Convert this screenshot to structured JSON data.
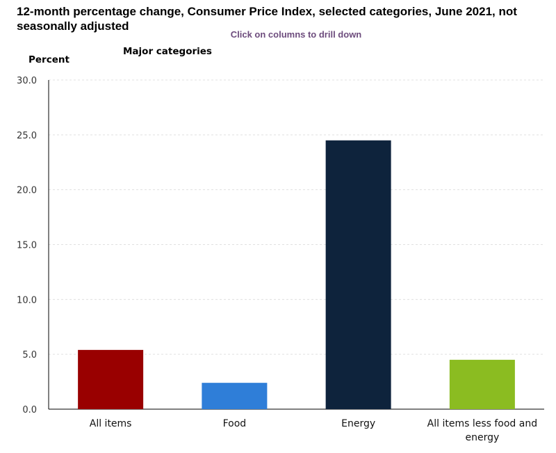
{
  "title": "12-month percentage change, Consumer Price Index, selected categories, June 2021, not seasonally adjusted",
  "hint": "Click on columns to drill down",
  "subtitle": "Major categories",
  "chart_data": {
    "type": "bar",
    "title": "12-month percentage change, Consumer Price Index, selected categories, June 2021, not seasonally adjusted",
    "subtitle": "Major categories",
    "ylabel": "Percent",
    "xlabel": "",
    "categories": [
      "All items",
      "Food",
      "Energy",
      "All items less food and energy"
    ],
    "category_label_lines": [
      [
        "All items"
      ],
      [
        "Food"
      ],
      [
        "Energy"
      ],
      [
        "All items less food and",
        "energy"
      ]
    ],
    "values": [
      5.4,
      2.4,
      24.5,
      4.5
    ],
    "colors": [
      "#990000",
      "#2f7ed8",
      "#0e233c",
      "#8bbc21"
    ],
    "ylim": [
      0,
      30
    ],
    "yticks": [
      "0.0",
      "5.0",
      "10.0",
      "15.0",
      "20.0",
      "25.0",
      "30.0"
    ],
    "grid": true,
    "legend": "none"
  }
}
